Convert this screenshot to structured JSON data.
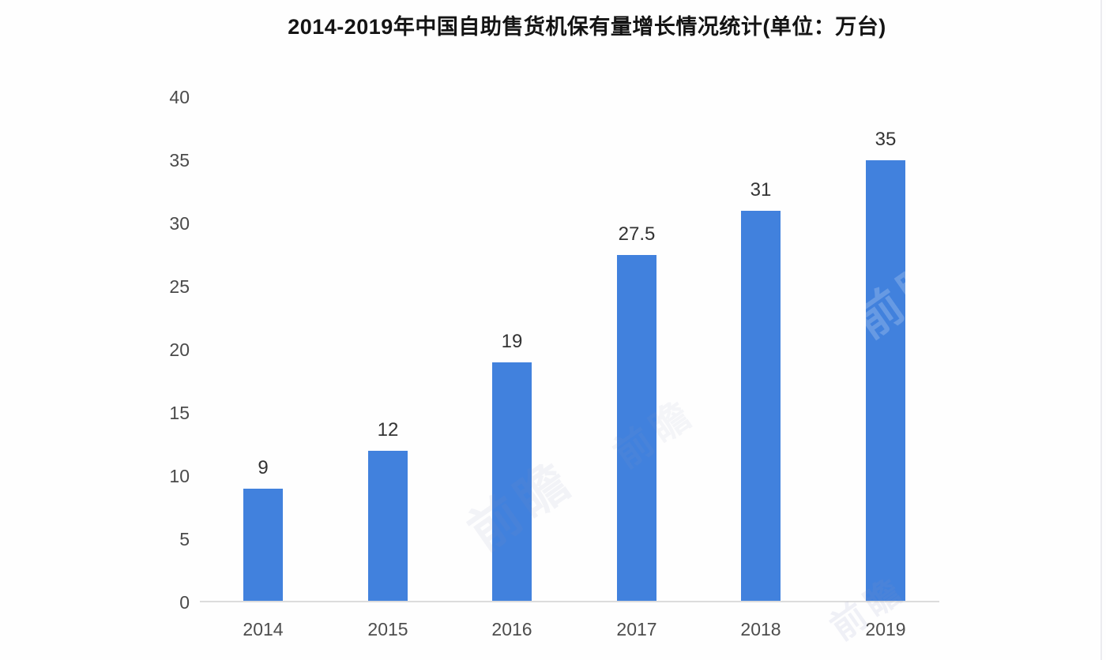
{
  "page": {
    "background_color": "#fefefe"
  },
  "chart": {
    "title": "2014-2019年中国自助售货机保有量增长情况统计(单位：万台)"
  },
  "chart_data": {
    "type": "bar",
    "title": "2014-2019年中国自助售货机保有量增长情况统计(单位：万台)",
    "unit": "万台",
    "categories": [
      "2014",
      "2015",
      "2016",
      "2017",
      "2018",
      "2019"
    ],
    "values": [
      9,
      12,
      19,
      27.5,
      31,
      35
    ],
    "value_labels": [
      "9",
      "12",
      "19",
      "27.5",
      "31",
      "35"
    ],
    "xlabel": "",
    "ylabel": "",
    "ylim": [
      0,
      40
    ],
    "yticks": [
      0,
      5,
      10,
      15,
      20,
      25,
      30,
      35,
      40
    ],
    "grid": false,
    "legend_position": "none",
    "bar_color": "#4181dd",
    "axis_line_color": "#dcdcdc",
    "ytick_label_color": "#4a4a4a",
    "xtick_label_color": "#4d4d4d",
    "value_label_color": "#333333",
    "title_color": "#141414"
  },
  "watermark": {
    "text": "前瞻"
  }
}
